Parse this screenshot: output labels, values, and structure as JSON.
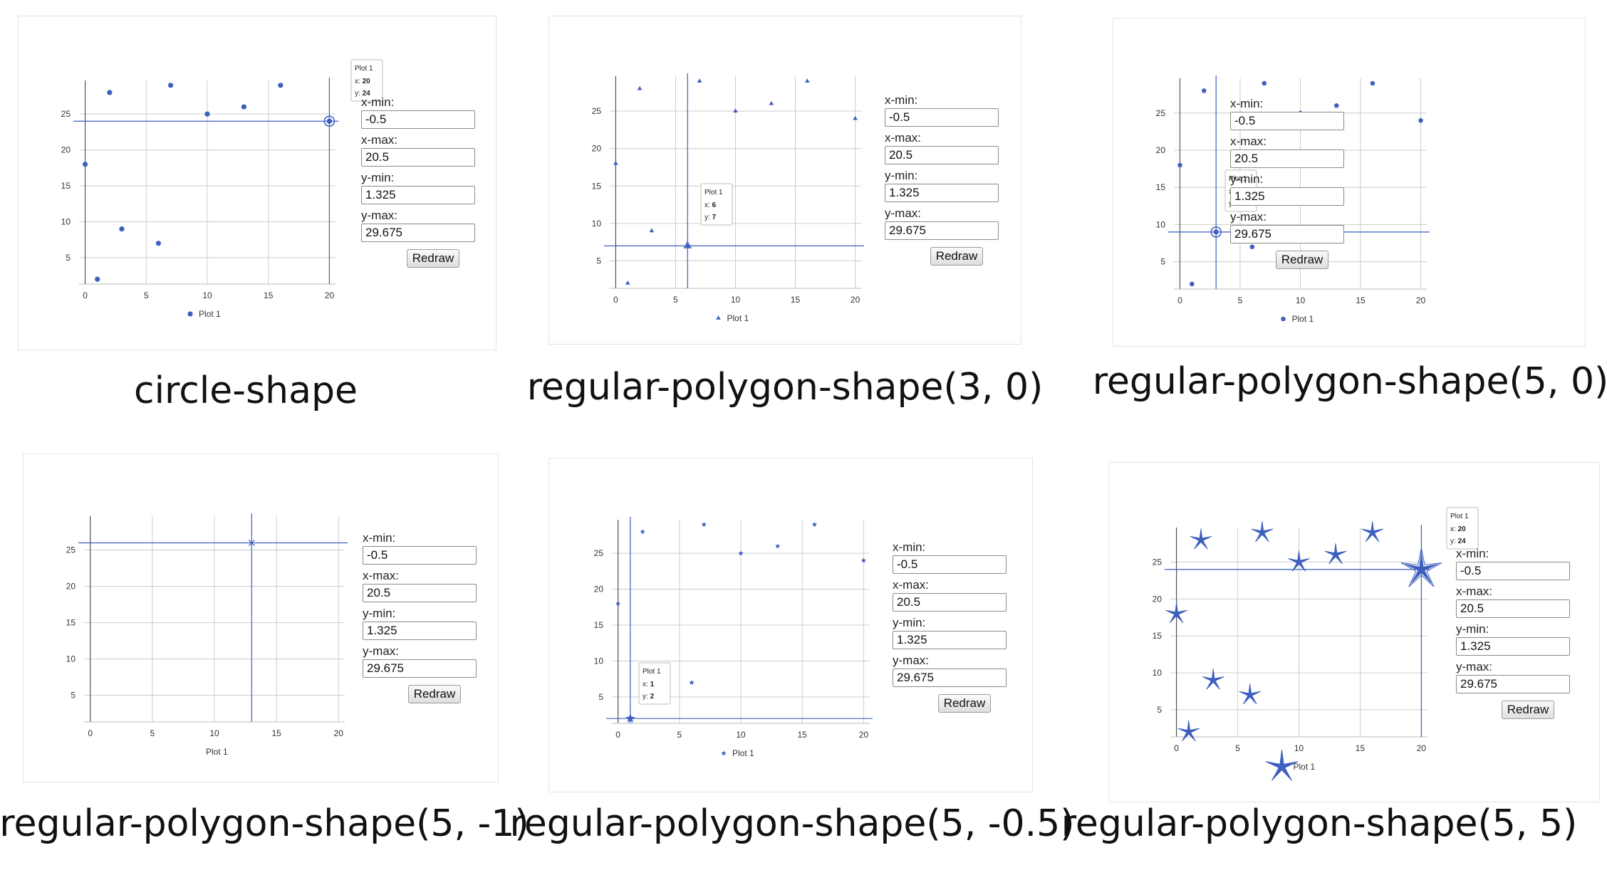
{
  "accent_color": "#3d5fbd",
  "grid_color": "#cccccc",
  "controls": {
    "xmin_label": "x-min:",
    "xmax_label": "x-max:",
    "ymin_label": "y-min:",
    "ymax_label": "y-max:",
    "redraw_label": "Redraw",
    "xmin_value": "-0.5",
    "xmax_value": "20.5",
    "ymin_value": "1.325",
    "ymax_value": "29.675"
  },
  "panels": [
    {
      "caption": "circle-shape",
      "marker": "circle",
      "marker_size": "small",
      "hover_point": {
        "x": 20,
        "y": 24
      },
      "tooltip": {
        "title": "Plot 1",
        "x_label": "x:",
        "x_value": "20",
        "y_label": "y:",
        "y_value": "24"
      },
      "legend_label": "Plot 1"
    },
    {
      "caption": "regular-polygon-shape(3, 0)",
      "marker": "triangle",
      "marker_size": "small",
      "hover_point": {
        "x": 6,
        "y": 7
      },
      "tooltip": {
        "title": "Plot 1",
        "x_label": "x:",
        "x_value": "6",
        "y_label": "y:",
        "y_value": "7"
      },
      "legend_label": "Plot 1"
    },
    {
      "caption": "regular-polygon-shape(5, 0)",
      "marker": "pentagon",
      "marker_size": "small",
      "hover_point": {
        "x": 3,
        "y": 9
      },
      "tooltip": {
        "title": "Plot 1",
        "x_label": "x:",
        "x_value": "3",
        "y_label": "y:",
        "y_value": "9"
      },
      "legend_label": "Plot 1"
    },
    {
      "caption": "regular-polygon-shape(5, -1)",
      "marker": "none",
      "marker_size": "small",
      "hover_point": {
        "x": 13,
        "y": 26
      },
      "tooltip": null,
      "legend_label": "Plot 1"
    },
    {
      "caption": "regular-polygon-shape(5, -0.5)",
      "marker": "star",
      "marker_size": "small",
      "hover_point": {
        "x": 1,
        "y": 2
      },
      "tooltip": {
        "title": "Plot 1",
        "x_label": "x:",
        "x_value": "1",
        "y_label": "y:",
        "y_value": "2"
      },
      "legend_label": "Plot 1"
    },
    {
      "caption": "regular-polygon-shape(5, 5)",
      "marker": "spiky-star",
      "marker_size": "large",
      "hover_point": {
        "x": 20,
        "y": 24
      },
      "tooltip": {
        "title": "Plot 1",
        "x_label": "x:",
        "x_value": "20",
        "y_label": "y:",
        "y_value": "24"
      },
      "legend_label": "Plot 1"
    }
  ],
  "chart_data": {
    "type": "scatter",
    "series": [
      {
        "name": "Plot 1",
        "x": [
          0,
          1,
          2,
          3,
          6,
          7,
          10,
          13,
          16,
          20
        ],
        "y": [
          18,
          2,
          28,
          9,
          7,
          29,
          25,
          26,
          29,
          24
        ]
      }
    ],
    "xlim": [
      -0.5,
      20.5
    ],
    "ylim": [
      1.325,
      29.675
    ],
    "x_ticks": [
      0,
      5,
      10,
      15,
      20
    ],
    "y_ticks": [
      5,
      10,
      15,
      20,
      25
    ],
    "grid": true,
    "legend_position": "bottom"
  }
}
